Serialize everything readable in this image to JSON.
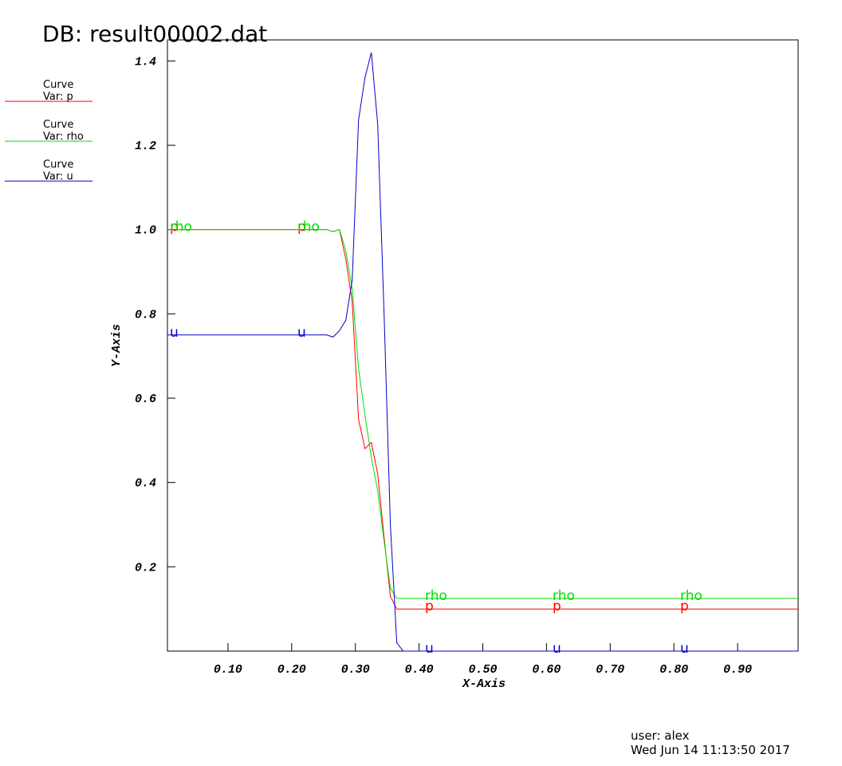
{
  "chart_data": {
    "type": "line",
    "title": "DB: result00002.dat",
    "x_label": "X-Axis",
    "y_label": "Y-Axis",
    "user": "user: alex",
    "date": "Wed Jun 14 11:13:50 2017",
    "x": [
      0.005,
      0.245,
      0.255,
      0.265,
      0.275,
      0.285,
      0.295,
      0.305,
      0.315,
      0.325,
      0.335,
      0.345,
      0.355,
      0.365,
      0.375,
      0.385,
      0.995
    ],
    "series": [
      {
        "legend_title": "Curve",
        "name": "Var: p",
        "curve_label": "p",
        "color": "#ff0000",
        "values": [
          1,
          1,
          1,
          0.995,
          1,
          0.93,
          0.83,
          0.55,
          0.48,
          0.495,
          0.42,
          0.27,
          0.13,
          0.1,
          0.1,
          0.1,
          0.1
        ]
      },
      {
        "legend_title": "Curve",
        "name": "Var: rho",
        "curve_label": "rho",
        "color": "#00dd00",
        "values": [
          1,
          1,
          1,
          0.995,
          1,
          0.95,
          0.86,
          0.67,
          0.56,
          0.46,
          0.38,
          0.26,
          0.15,
          0.125,
          0.125,
          0.125,
          0.125
        ]
      },
      {
        "legend_title": "Curve",
        "name": "Var: u",
        "curve_label": "u",
        "color": "#0000cc",
        "values": [
          0.75,
          0.75,
          0.75,
          0.745,
          0.76,
          0.785,
          0.88,
          1.26,
          1.36,
          1.42,
          1.25,
          0.8,
          0.3,
          0.02,
          0,
          0,
          0
        ]
      }
    ],
    "xlim": [
      0.005,
      0.995
    ],
    "ylim": [
      0,
      1.45
    ],
    "xticks": [
      {
        "value": 0.1,
        "label": "0.10"
      },
      {
        "value": 0.2,
        "label": "0.20"
      },
      {
        "value": 0.3,
        "label": "0.30"
      },
      {
        "value": 0.4,
        "label": "0.40"
      },
      {
        "value": 0.5,
        "label": "0.50"
      },
      {
        "value": 0.6,
        "label": "0.60"
      },
      {
        "value": 0.7,
        "label": "0.70"
      },
      {
        "value": 0.8,
        "label": "0.80"
      },
      {
        "value": 0.9,
        "label": "0.90"
      }
    ],
    "yticks": [
      0.2,
      0.4,
      0.6,
      0.8,
      {
        "value": 1,
        "label": "1.0"
      },
      1.2,
      1.4
    ]
  }
}
